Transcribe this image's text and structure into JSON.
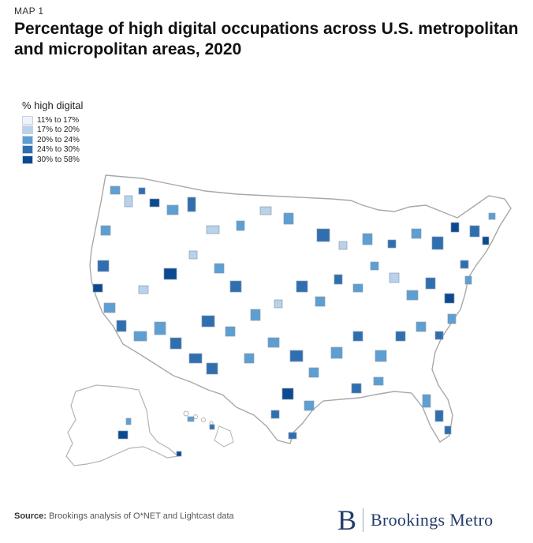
{
  "header": {
    "kicker": "MAP 1",
    "title": "Percentage of high digital occupations across U.S. metropolitan and micropolitan areas, 2020"
  },
  "legend": {
    "title": "% high digital",
    "items": [
      {
        "label": "11% to 17%",
        "color": "#eef3fa"
      },
      {
        "label": "17% to 20%",
        "color": "#b9d2ea"
      },
      {
        "label": "20% to 24%",
        "color": "#5d9fd2"
      },
      {
        "label": "24% to 30%",
        "color": "#2f6fb0"
      },
      {
        "label": "30% to 58%",
        "color": "#0b4a8f"
      }
    ]
  },
  "footer": {
    "source_label": "Source:",
    "source_text": "Brookings analysis of O*NET and Lightcast data"
  },
  "brand": {
    "mark": "B",
    "name": "Brookings Metro"
  }
}
